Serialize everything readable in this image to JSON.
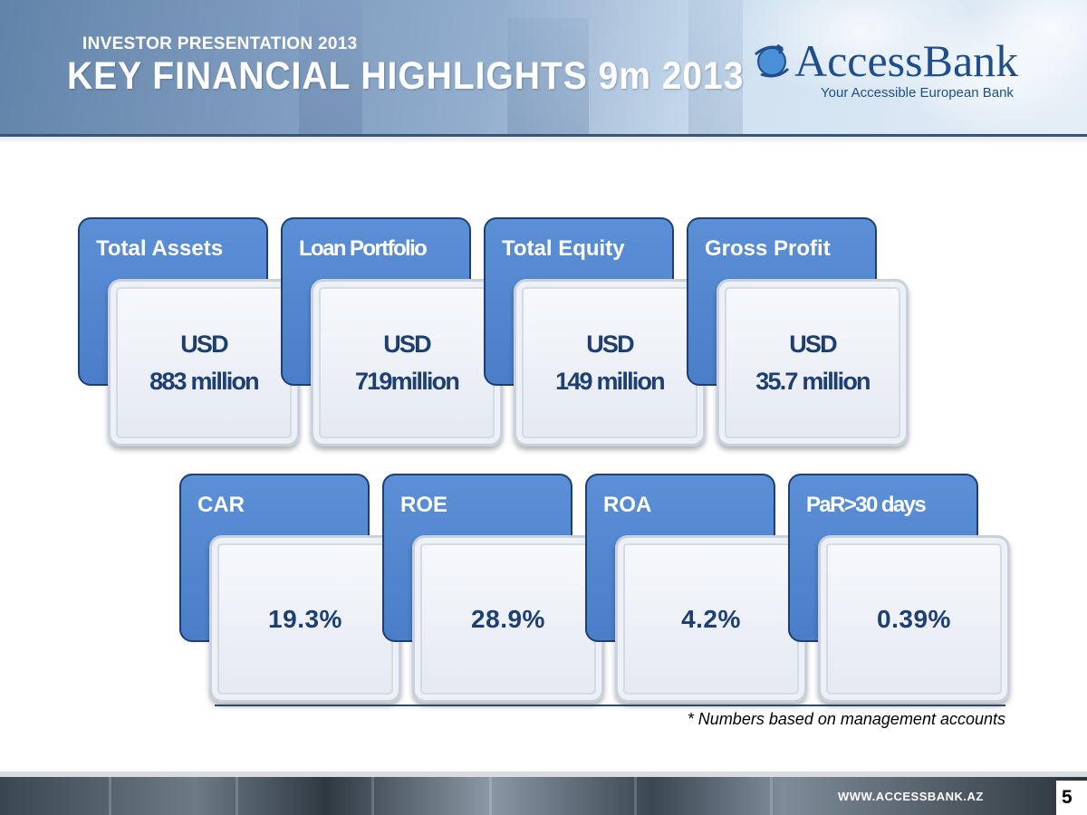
{
  "header": {
    "supertitle": "INVESTOR PRESENTATION 2013",
    "title": "KEY FINANCIAL HIGHLIGHTS 9m 2013"
  },
  "logo": {
    "name": "AccessBank",
    "tagline": "Your Accessible European Bank"
  },
  "cards_row1": [
    {
      "label": "Total Assets",
      "line1": "USD",
      "line2": "883 million"
    },
    {
      "label": "Loan Portfolio",
      "line1": "USD",
      "line2": "719million"
    },
    {
      "label": "Total Equity",
      "line1": "USD",
      "line2": "149 million"
    },
    {
      "label": "Gross Profit",
      "line1": "USD",
      "line2": "35.7 million"
    }
  ],
  "cards_row2": [
    {
      "label": "CAR",
      "value": "19.3%"
    },
    {
      "label": "ROE",
      "value": "28.9%"
    },
    {
      "label": "ROA",
      "value": "4.2%"
    },
    {
      "label": "PaR>30 days",
      "value": "0.39%"
    }
  ],
  "footnote": "* Numbers based on management accounts",
  "footer": {
    "url": "WWW.ACCESSBANK.AZ",
    "page_number": "5"
  },
  "colors": {
    "tab_blue": "#4a7ec9",
    "tab_border": "#1d3f73",
    "value_text": "#1d3f73",
    "brand_blue": "#1f4e8c"
  }
}
